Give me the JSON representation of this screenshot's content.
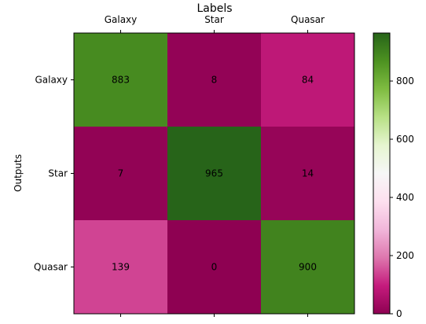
{
  "chart_data": {
    "type": "heatmap",
    "title": "Labels",
    "xlabel": "",
    "ylabel": "Outputs",
    "x_categories": [
      "Galaxy",
      "Star",
      "Quasar"
    ],
    "y_categories": [
      "Galaxy",
      "Star",
      "Quasar"
    ],
    "x_axis_position": "top",
    "values": [
      [
        883,
        8,
        84
      ],
      [
        7,
        965,
        14
      ],
      [
        139,
        0,
        900
      ]
    ],
    "colormap": "PiYG",
    "color_range": [
      0,
      965
    ],
    "colorbar": {
      "ticks": [
        0,
        200,
        400,
        600,
        800
      ],
      "tick_labels": [
        "0",
        "200",
        "400",
        "600",
        "800"
      ]
    },
    "grid": false
  }
}
